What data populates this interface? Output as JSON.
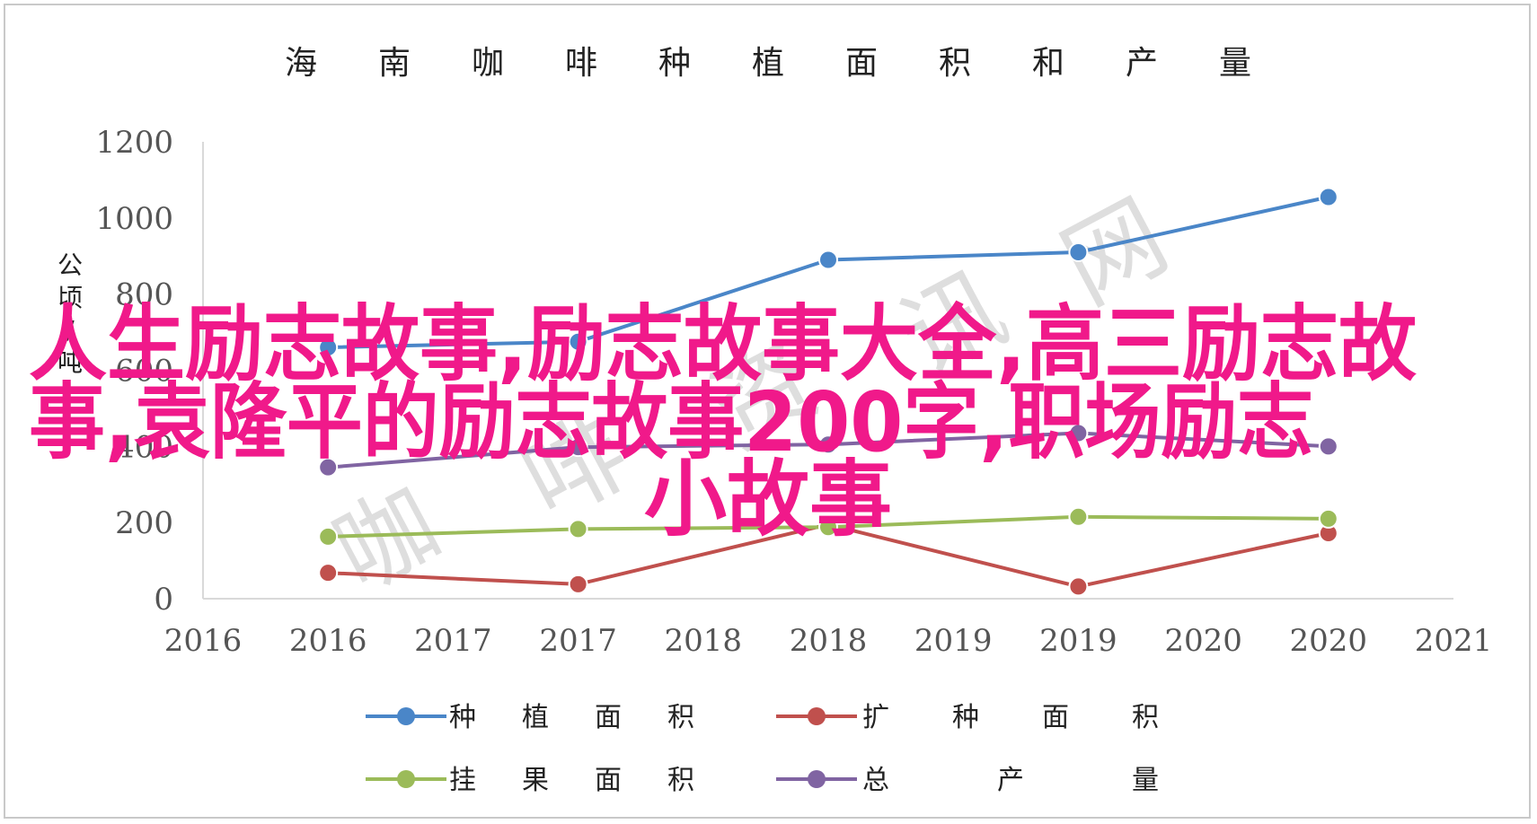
{
  "chart_data": {
    "type": "line",
    "title": "海南咖啡种植面积和产量",
    "ylabel": "公顷/吨",
    "xlabel": "",
    "ylim": [
      0,
      1200
    ],
    "yticks": [
      0,
      200,
      400,
      600,
      800,
      1000,
      1200
    ],
    "xlim": [
      2016,
      2021
    ],
    "xtick_labels": [
      "2016",
      "2016",
      "2017",
      "2017",
      "2018",
      "2018",
      "2019",
      "2019",
      "2020",
      "2020",
      "2021"
    ],
    "x": [
      2016.5,
      2017.5,
      2018.5,
      2019.5,
      2020.5
    ],
    "series": [
      {
        "name": "种植面积",
        "color": "#4a86c8",
        "values": [
          660,
          675,
          890,
          910,
          1055
        ]
      },
      {
        "name": "扩种面积",
        "color": "#c0504d",
        "values": [
          68,
          38,
          195,
          32,
          172
        ]
      },
      {
        "name": "挂果面积",
        "color": "#9bbb59",
        "values": [
          163,
          183,
          188,
          215,
          210
        ]
      },
      {
        "name": "总产量",
        "color": "#8064a2",
        "values": [
          345,
          398,
          405,
          435,
          400
        ]
      }
    ],
    "grid": false,
    "legend_position": "bottom"
  },
  "overlay": {
    "line1": "人生励志故事,励志故事大全,高三励志故",
    "line2": "事,袁隆平的励志故事200字,职场励志",
    "line3": "小故事",
    "color": "#f0198a"
  },
  "watermark": {
    "text": "咖啡资讯网"
  }
}
